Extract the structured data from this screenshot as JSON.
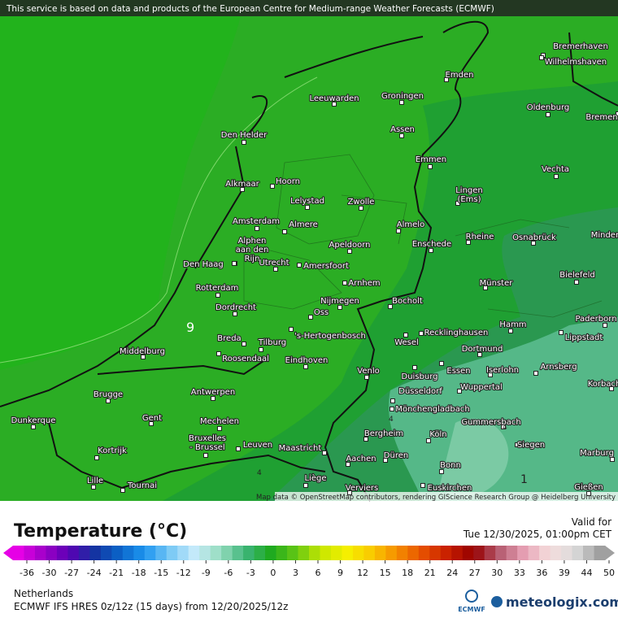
{
  "header": {
    "notice": "This service is based on data and products of the European Centre for Medium-range Weather Forecasts (ECMWF)"
  },
  "map": {
    "attribution": "Map data © OpenStreetMap contributors, rendering GIScience Research Group @ Heidelberg University",
    "contour_labels": [
      "9",
      "4",
      "4",
      "4",
      "1"
    ],
    "cities": [
      "Bremerhaven",
      "Wilhelmshaven",
      "Emden",
      "Leeuwarden",
      "Groningen",
      "Bremen",
      "Oldenburg",
      "Den Helder",
      "Assen",
      "Emmen",
      "Vechta",
      "Alkmaar",
      "Hoorn",
      [
        "Lingen",
        "(Ems)"
      ],
      "Lelystad",
      "Zwolle",
      "Amsterdam",
      "Almere",
      "Almelo",
      "Minden",
      "Rheine",
      "Osnabrück",
      [
        "Alphen",
        "aan den",
        "Rijn"
      ],
      "Apeldoorn",
      "Enschede",
      "Den Haag",
      "Utrecht",
      "Amersfoort",
      "Bielefeld",
      "Münster",
      "Rotterdam",
      "Arnhem",
      "Nijmegen",
      "Bocholt",
      "Dordrecht",
      "Oss",
      "Paderborn",
      "Hamm",
      "Middelburg",
      "Breda",
      "'s-Hertogenbosch",
      "Recklinghausen",
      "Lippstadt",
      "Tilburg",
      "Wesel",
      "Dortmund",
      "Roosendaal",
      "Eindhoven",
      "Venlo",
      "Arnsberg",
      "Essen",
      "Iserlohn",
      "Korbach",
      "Duisburg",
      "Brugge",
      "Antwerpen",
      "Wuppertal",
      "Düsseldorf",
      "Mönchengladbach",
      "Dunkerque",
      "Gent",
      "Mechelen",
      "Gummersbach",
      "Bergheim",
      "Köln",
      [
        "Bruxelles",
        "- Brussel"
      ],
      "Leuven",
      "Maastricht",
      "Siegen",
      "Kortrijk",
      "Düren",
      "Marburg",
      "Aachen",
      "Bonn",
      "Lille",
      "Liège",
      "Tournai",
      "Verviers",
      "Euskirchen",
      "Gießen"
    ]
  },
  "legend": {
    "title": "Temperature (°C)",
    "valid_label": "Valid for",
    "valid_time": "Tue 12/30/2025, 01:00pm CET",
    "ticks": [
      -36,
      -30,
      -27,
      -24,
      -21,
      -18,
      -15,
      -12,
      -9,
      -6,
      -3,
      0,
      3,
      6,
      9,
      12,
      15,
      18,
      21,
      24,
      27,
      30,
      33,
      36,
      39,
      44,
      50
    ],
    "region": "Netherlands",
    "model": "ECMWF IFS HRES 0z/12z (15 days) from 12/20/2025/12z",
    "logo": "ECMWF",
    "brand": "meteologix.com"
  }
}
